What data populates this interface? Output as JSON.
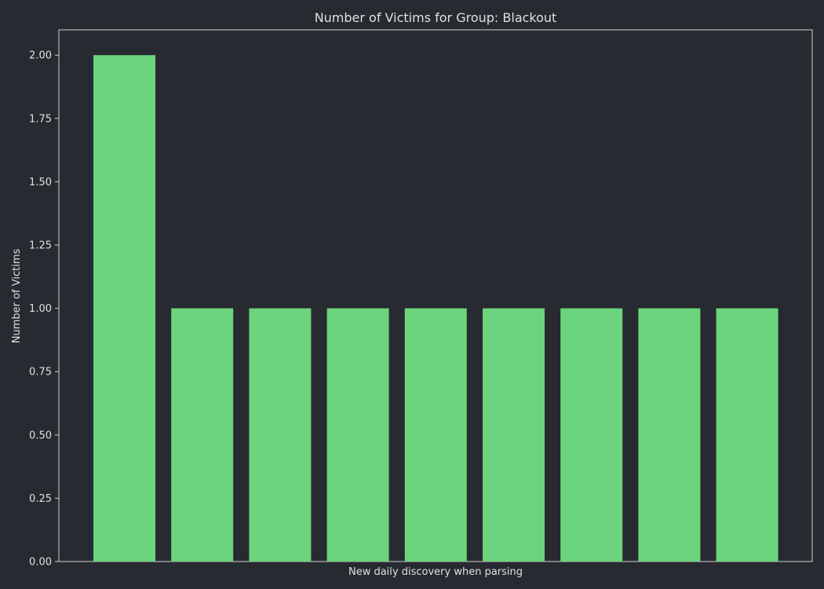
{
  "chart_data": {
    "type": "bar",
    "title": "Number of Victims for Group: Blackout",
    "xlabel": "New daily discovery when parsing",
    "ylabel": "Number of Victims",
    "categories": [
      "",
      "",
      "",
      "",
      "",
      "",
      "",
      "",
      ""
    ],
    "values": [
      2,
      1,
      1,
      1,
      1,
      1,
      1,
      1,
      1
    ],
    "ylim": [
      0,
      2.1
    ],
    "yticks": [
      "0.00",
      "0.25",
      "0.50",
      "0.75",
      "1.00",
      "1.25",
      "1.50",
      "1.75",
      "2.00"
    ],
    "grid": false,
    "legend": "none"
  },
  "colors": {
    "background": "#272a30",
    "bar": "#6bd47c",
    "axis": "#d0d0d0",
    "text": "#e0e0e0"
  }
}
